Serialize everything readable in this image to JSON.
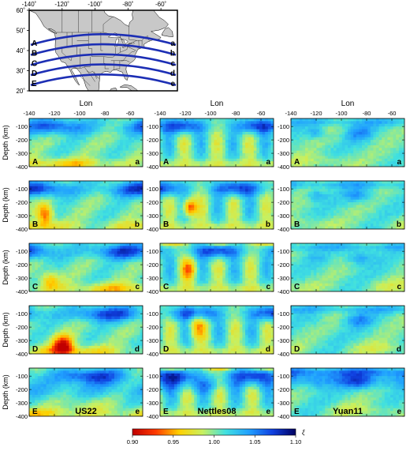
{
  "map": {
    "lon_ticks": [
      "-140˚",
      "-120˚",
      "-100˚",
      "-80˚",
      "-60˚"
    ],
    "lat_ticks": [
      "60˚",
      "50˚",
      "40˚",
      "30˚",
      "20˚"
    ],
    "lon_range": [
      -140,
      -50
    ],
    "lat_range": [
      20,
      60
    ],
    "profile_color": "#1d2fb4",
    "profiles": [
      {
        "start": "A",
        "end": "a",
        "lat": 44
      },
      {
        "start": "B",
        "end": "b",
        "lat": 39
      },
      {
        "start": "C",
        "end": "c",
        "lat": 34
      },
      {
        "start": "D",
        "end": "d",
        "lat": 29
      },
      {
        "start": "E",
        "end": "e",
        "lat": 24
      }
    ]
  },
  "chart_data": {
    "type": "heatmap",
    "column_header": "Lon",
    "ylabel": "Depth (km)",
    "x_ticks": [
      -140,
      -120,
      -100,
      -80,
      -60
    ],
    "x_tick_labels": [
      "-140",
      "-120",
      "-100",
      "-80",
      "-60"
    ],
    "y_ticks": [
      -100,
      -200,
      -300,
      -400
    ],
    "y_tick_labels": [
      "-100",
      "-200",
      "-300",
      "-400"
    ],
    "xlim": [
      -140,
      -50
    ],
    "ylim": [
      -400,
      -40
    ],
    "models": [
      "US22",
      "Nettles08",
      "Yuan11"
    ],
    "rows": [
      {
        "start": "A",
        "end": "a"
      },
      {
        "start": "B",
        "end": "b"
      },
      {
        "start": "C",
        "end": "c"
      },
      {
        "start": "D",
        "end": "d"
      },
      {
        "start": "E",
        "end": "e"
      }
    ],
    "colorbar": {
      "min": 0.9,
      "max": 1.1,
      "tick_labels": [
        "0.90",
        "0.95",
        "1.00",
        "1.05",
        "1.10"
      ],
      "label": "ξ",
      "stops": [
        "#c00000",
        "#ff3a00",
        "#ffd000",
        "#c8f060",
        "#40e0e0",
        "#20a0ff",
        "#1040e0",
        "#000060"
      ]
    }
  }
}
